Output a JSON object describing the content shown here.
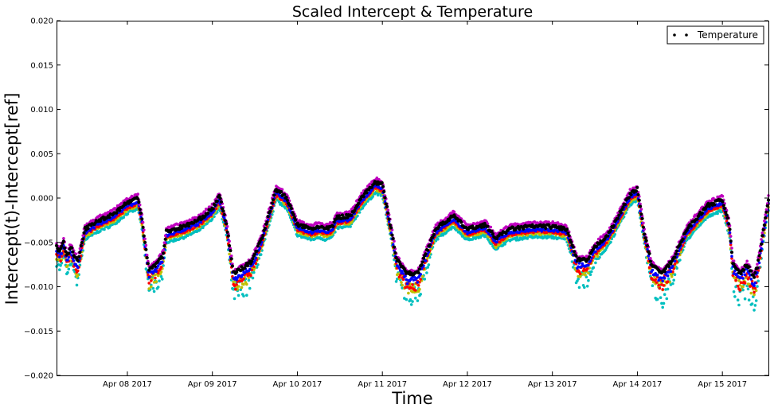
{
  "chart_data": {
    "type": "scatter",
    "title": "Scaled Intercept & Temperature",
    "xlabel": "Time",
    "ylabel": "Intercept(t)-Intercept[ref]",
    "xlim": [
      "2017-04-07 04:00",
      "2017-04-15 13:00"
    ],
    "ylim": [
      -0.02,
      0.02
    ],
    "yticks": [
      -0.02,
      -0.015,
      -0.01,
      -0.005,
      0.0,
      0.005,
      0.01,
      0.015,
      0.02
    ],
    "ytick_labels": [
      "−0.020",
      "−0.015",
      "−0.010",
      "−0.005",
      "0.000",
      "0.005",
      "0.010",
      "0.015",
      "0.020"
    ],
    "xticks": [
      "2017-04-08",
      "2017-04-09",
      "2017-04-10",
      "2017-04-11",
      "2017-04-12",
      "2017-04-13",
      "2017-04-14",
      "2017-04-15"
    ],
    "xtick_labels": [
      "Apr 08 2017",
      "Apr 09 2017",
      "Apr 10 2017",
      "Apr 11 2017",
      "Apr 12 2017",
      "Apr 13 2017",
      "Apr 14 2017",
      "Apr 15 2017"
    ],
    "grid": false,
    "legend": {
      "position": "top-right",
      "entries": [
        "Temperature"
      ]
    },
    "series": [
      {
        "name": "Temperature",
        "color": "#000000",
        "points": [
          [
            "2017-04-07 04:00",
            -0.0055
          ],
          [
            "2017-04-07 05:00",
            -0.006
          ],
          [
            "2017-04-07 06:00",
            -0.005
          ],
          [
            "2017-04-07 07:00",
            -0.0065
          ],
          [
            "2017-04-07 08:00",
            -0.0055
          ],
          [
            "2017-04-07 09:00",
            -0.0065
          ],
          [
            "2017-04-07 10:00",
            -0.0072
          ],
          [
            "2017-04-07 12:00",
            -0.0035
          ],
          [
            "2017-04-07 16:00",
            -0.0025
          ],
          [
            "2017-04-07 20:00",
            -0.0018
          ],
          [
            "2017-04-08 00:00",
            -0.0005
          ],
          [
            "2017-04-08 03:00",
            0.0
          ],
          [
            "2017-04-08 04:00",
            -0.002
          ],
          [
            "2017-04-08 05:00",
            -0.005
          ],
          [
            "2017-04-08 06:00",
            -0.008
          ],
          [
            "2017-04-08 08:00",
            -0.0075
          ],
          [
            "2017-04-08 10:00",
            -0.0065
          ],
          [
            "2017-04-08 11:00",
            -0.0038
          ],
          [
            "2017-04-08 16:00",
            -0.0032
          ],
          [
            "2017-04-08 20:00",
            -0.0025
          ],
          [
            "2017-04-09 00:00",
            -0.0012
          ],
          [
            "2017-04-09 02:00",
            0.0002
          ],
          [
            "2017-04-09 04:00",
            -0.003
          ],
          [
            "2017-04-09 06:00",
            -0.0085
          ],
          [
            "2017-04-09 08:00",
            -0.008
          ],
          [
            "2017-04-09 11:00",
            -0.0072
          ],
          [
            "2017-04-09 14:00",
            -0.0045
          ],
          [
            "2017-04-09 18:00",
            0.001
          ],
          [
            "2017-04-09 21:00",
            0.0
          ],
          [
            "2017-04-10 00:00",
            -0.003
          ],
          [
            "2017-04-10 04:00",
            -0.0035
          ],
          [
            "2017-04-10 06:00",
            -0.0032
          ],
          [
            "2017-04-10 08:00",
            -0.0035
          ],
          [
            "2017-04-10 10:00",
            -0.0032
          ],
          [
            "2017-04-10 11:00",
            -0.0022
          ],
          [
            "2017-04-10 15:00",
            -0.002
          ],
          [
            "2017-04-10 18:00",
            0.0
          ],
          [
            "2017-04-10 22:00",
            0.0018
          ],
          [
            "2017-04-11 00:00",
            0.0015
          ],
          [
            "2017-04-11 02:00",
            -0.0025
          ],
          [
            "2017-04-11 04:00",
            -0.0068
          ],
          [
            "2017-04-11 07:00",
            -0.0085
          ],
          [
            "2017-04-11 10:00",
            -0.0085
          ],
          [
            "2017-04-11 12:00",
            -0.0065
          ],
          [
            "2017-04-11 15:00",
            -0.0035
          ],
          [
            "2017-04-11 20:00",
            -0.002
          ],
          [
            "2017-04-12 00:00",
            -0.0035
          ],
          [
            "2017-04-12 05:00",
            -0.003
          ],
          [
            "2017-04-12 08:00",
            -0.0045
          ],
          [
            "2017-04-12 12:00",
            -0.0035
          ],
          [
            "2017-04-12 18:00",
            -0.0032
          ],
          [
            "2017-04-13 00:00",
            -0.0032
          ],
          [
            "2017-04-13 04:00",
            -0.0035
          ],
          [
            "2017-04-13 07:00",
            -0.007
          ],
          [
            "2017-04-13 10:00",
            -0.007
          ],
          [
            "2017-04-13 12:00",
            -0.0055
          ],
          [
            "2017-04-13 16:00",
            -0.004
          ],
          [
            "2017-04-13 22:00",
            0.0005
          ],
          [
            "2017-04-14 00:00",
            0.001
          ],
          [
            "2017-04-14 02:00",
            -0.004
          ],
          [
            "2017-04-14 04:00",
            -0.0075
          ],
          [
            "2017-04-14 07:00",
            -0.0085
          ],
          [
            "2017-04-14 10:00",
            -0.007
          ],
          [
            "2017-04-14 14:00",
            -0.0035
          ],
          [
            "2017-04-14 20:00",
            -0.0008
          ],
          [
            "2017-04-15 00:00",
            -0.0002
          ],
          [
            "2017-04-15 02:00",
            -0.003
          ],
          [
            "2017-04-15 03:00",
            -0.0075
          ],
          [
            "2017-04-15 05:00",
            -0.0085
          ],
          [
            "2017-04-15 07:00",
            -0.0075
          ],
          [
            "2017-04-15 09:00",
            -0.009
          ],
          [
            "2017-04-15 10:00",
            -0.0075
          ],
          [
            "2017-04-15 13:00",
            -0.0002
          ]
        ]
      },
      {
        "color": "#bf00bf",
        "offset": 0.0004,
        "spread": 0.0002
      },
      {
        "color": "#0000ff",
        "offset": -0.0004,
        "spread": 0.0006
      },
      {
        "color": "#ff0000",
        "offset": -0.0006,
        "spread": 0.0012
      },
      {
        "color": "#bfbf00",
        "offset": -0.0008,
        "spread": 0.0015
      },
      {
        "color": "#00bfbf",
        "offset": -0.0012,
        "spread": 0.0025
      }
    ]
  }
}
